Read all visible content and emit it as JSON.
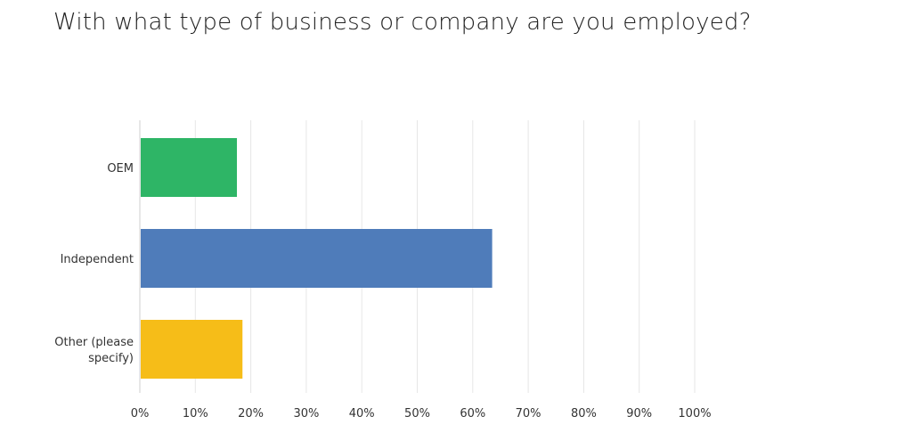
{
  "title": "With what type of business or company are you employed?",
  "chart_data": {
    "type": "bar",
    "orientation": "horizontal",
    "title": "With what type of business or company are you employed?",
    "categories": [
      {
        "label_lines": [
          "OEM"
        ],
        "value": 17.5,
        "color": "#2eb566"
      },
      {
        "label_lines": [
          "Independent"
        ],
        "value": 63.5,
        "color": "#4f7cba"
      },
      {
        "label_lines": [
          "Other (please",
          "specify)"
        ],
        "value": 18.5,
        "color": "#f6bd18"
      }
    ],
    "x_ticks": [
      "0%",
      "10%",
      "20%",
      "30%",
      "40%",
      "50%",
      "60%",
      "70%",
      "80%",
      "90%",
      "100%"
    ],
    "xlim": [
      0,
      100
    ],
    "grid": true,
    "legend": false
  }
}
